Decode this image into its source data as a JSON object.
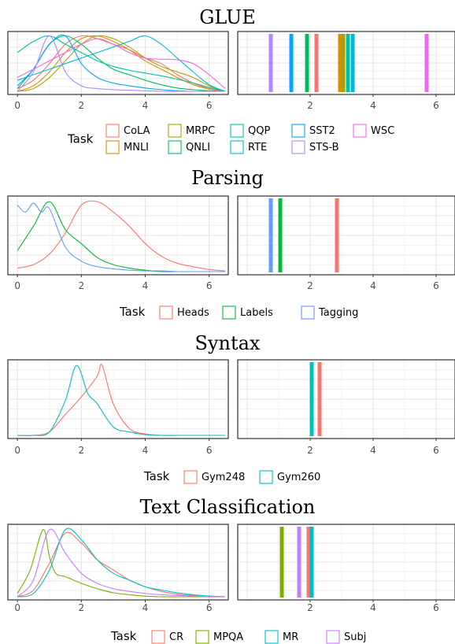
{
  "chart_data": [
    {
      "type": "density",
      "title": "GLUE",
      "xlim": [
        -0.3,
        6.6
      ],
      "xticks": [
        0,
        2,
        4,
        6
      ],
      "ylim": [
        0,
        1.08
      ],
      "grid": true,
      "legend": {
        "title": "Task",
        "position": "bottom",
        "columns": 5
      },
      "series": [
        {
          "name": "CoLA",
          "color": "#F8766D",
          "mean": 2.2,
          "x": [
            0,
            0.5,
            1,
            1.5,
            2,
            2.5,
            3,
            3.5,
            4,
            4.5,
            5,
            5.5,
            6,
            6.5
          ],
          "y": [
            0.05,
            0.2,
            0.5,
            0.85,
            1.0,
            0.95,
            0.85,
            0.75,
            0.6,
            0.5,
            0.3,
            0.15,
            0.05,
            0.0
          ]
        },
        {
          "name": "MNLI",
          "color": "#DB8E00",
          "mean": 2.95,
          "x": [
            0,
            0.5,
            1,
            1.5,
            2,
            2.5,
            3,
            3.5,
            4,
            4.5,
            5,
            5.5,
            6,
            6.5
          ],
          "y": [
            0.0,
            0.1,
            0.35,
            0.7,
            0.95,
            1.0,
            0.9,
            0.75,
            0.55,
            0.4,
            0.25,
            0.12,
            0.04,
            0.0
          ]
        },
        {
          "name": "MRPC",
          "color": "#AEA200",
          "mean": 3.05,
          "x": [
            0,
            0.5,
            1,
            1.5,
            2,
            2.5,
            3,
            3.5,
            4,
            4.5,
            5,
            5.5,
            6,
            6.5
          ],
          "y": [
            0.0,
            0.05,
            0.25,
            0.55,
            0.85,
            1.0,
            0.95,
            0.8,
            0.6,
            0.45,
            0.35,
            0.25,
            0.1,
            0.0
          ]
        },
        {
          "name": "QNLI",
          "color": "#00BD5C",
          "mean": 1.9,
          "x": [
            0,
            0.5,
            1,
            1.5,
            2,
            2.5,
            3,
            3.5,
            4,
            4.5,
            5,
            5.5,
            6,
            6.5
          ],
          "y": [
            0.05,
            0.4,
            0.85,
            1.0,
            0.85,
            0.6,
            0.4,
            0.3,
            0.2,
            0.12,
            0.06,
            0.03,
            0.01,
            0.0
          ]
        },
        {
          "name": "QQP",
          "color": "#00C1A7",
          "mean": 3.2,
          "x": [
            0,
            0.5,
            1,
            1.5,
            2,
            2.5,
            3,
            3.5,
            4,
            4.5,
            5,
            5.5,
            6,
            6.5
          ],
          "y": [
            0.7,
            0.9,
            1.0,
            0.85,
            0.7,
            0.55,
            0.45,
            0.38,
            0.33,
            0.28,
            0.22,
            0.15,
            0.07,
            0.0
          ]
        },
        {
          "name": "RTE",
          "color": "#00BADE",
          "mean": 3.35,
          "x": [
            0,
            0.5,
            1,
            1.5,
            2,
            2.5,
            3,
            3.5,
            4,
            4.5,
            5,
            5.5,
            6,
            6.5
          ],
          "y": [
            0.2,
            0.3,
            0.4,
            0.5,
            0.6,
            0.7,
            0.8,
            0.9,
            1.0,
            0.85,
            0.6,
            0.35,
            0.12,
            0.0
          ]
        },
        {
          "name": "SST2",
          "color": "#00A6FF",
          "mean": 1.4,
          "x": [
            0,
            0.5,
            1,
            1.5,
            2,
            2.5,
            3,
            3.5,
            4,
            4.5,
            5,
            5.5,
            6,
            6.5
          ],
          "y": [
            0.1,
            0.4,
            0.85,
            1.0,
            0.5,
            0.25,
            0.15,
            0.1,
            0.06,
            0.03,
            0.01,
            0.0,
            0.0,
            0.0
          ]
        },
        {
          "name": "STS-B",
          "color": "#B385FF",
          "mean": 0.75,
          "x": [
            0,
            0.5,
            1,
            1.5,
            2,
            2.5,
            3,
            3.5,
            4,
            4.5,
            5,
            5.5,
            6,
            6.5
          ],
          "y": [
            0.0,
            0.35,
            1.0,
            0.35,
            0.1,
            0.05,
            0.03,
            0.02,
            0.01,
            0.0,
            0.0,
            0.0,
            0.0,
            0.0
          ]
        },
        {
          "name": "WSC",
          "color": "#EF67EB",
          "mean": 5.7,
          "x": [
            0,
            0.5,
            1,
            1.5,
            2,
            2.5,
            3,
            3.5,
            4,
            4.5,
            5,
            5.5,
            6,
            6.5
          ],
          "y": [
            0.25,
            0.4,
            0.55,
            0.7,
            0.85,
            0.95,
            0.85,
            0.7,
            0.6,
            0.58,
            0.57,
            0.5,
            0.3,
            0.05
          ]
        }
      ]
    },
    {
      "type": "density",
      "title": "Parsing",
      "xlim": [
        -0.3,
        6.6
      ],
      "xticks": [
        0,
        2,
        4,
        6
      ],
      "ylim": [
        0,
        1.08
      ],
      "grid": true,
      "legend": {
        "title": "Task",
        "position": "bottom",
        "columns": 3
      },
      "series": [
        {
          "name": "Heads",
          "color": "#F8766D",
          "mean": 2.85,
          "x": [
            0,
            0.5,
            1,
            1.5,
            2,
            2.5,
            3,
            3.5,
            4,
            4.5,
            5,
            5.5,
            6,
            6.5
          ],
          "y": [
            0.05,
            0.1,
            0.25,
            0.55,
            0.95,
            1.0,
            0.85,
            0.65,
            0.4,
            0.22,
            0.12,
            0.07,
            0.03,
            0.01
          ]
        },
        {
          "name": "Labels",
          "color": "#00BA38",
          "mean": 1.05,
          "x": [
            0,
            0.5,
            1,
            1.5,
            2,
            2.5,
            3,
            3.5,
            4,
            4.5,
            5,
            5.5,
            6,
            6.5
          ],
          "y": [
            0.3,
            0.65,
            1.0,
            0.6,
            0.4,
            0.2,
            0.1,
            0.05,
            0.02,
            0.0,
            0.0,
            0.0,
            0.0,
            0.0
          ]
        },
        {
          "name": "Tagging",
          "color": "#619CFF",
          "mean": 0.75,
          "x": [
            0,
            0.25,
            0.5,
            0.75,
            1,
            1.5,
            2,
            2.5,
            3,
            3.5,
            4,
            4.5,
            5,
            5.5,
            6,
            6.5
          ],
          "y": [
            0.95,
            0.85,
            0.98,
            0.85,
            0.9,
            0.35,
            0.15,
            0.07,
            0.04,
            0.02,
            0.01,
            0.01,
            0.0,
            0.0,
            0.0,
            0.0
          ]
        }
      ]
    },
    {
      "type": "density",
      "title": "Syntax",
      "xlim": [
        -0.3,
        6.6
      ],
      "xticks": [
        0,
        2,
        4,
        6
      ],
      "ylim": [
        0,
        1.08
      ],
      "grid": true,
      "legend": {
        "title": "Task",
        "position": "bottom",
        "columns": 2
      },
      "series": [
        {
          "name": "Gym248",
          "color": "#F8766D",
          "mean": 2.3,
          "x": [
            0,
            0.5,
            1,
            1.5,
            2,
            2.5,
            2.65,
            3,
            3.5,
            4,
            4.5,
            5,
            5.5,
            6,
            6.5
          ],
          "y": [
            0,
            0,
            0.05,
            0.3,
            0.55,
            0.85,
            1.0,
            0.45,
            0.1,
            0.02,
            0,
            0,
            0,
            0,
            0
          ]
        },
        {
          "name": "Gym260",
          "color": "#00BFC4",
          "mean": 2.05,
          "x": [
            0,
            0.5,
            1,
            1.5,
            1.85,
            2.2,
            2.5,
            3,
            3.5,
            4,
            4.5,
            5,
            5.5,
            6,
            6.5
          ],
          "y": [
            0,
            0,
            0.05,
            0.5,
            1.0,
            0.6,
            0.45,
            0.12,
            0.05,
            0.01,
            0,
            0,
            0,
            0,
            0
          ]
        }
      ]
    },
    {
      "type": "density",
      "title": "Text Classification",
      "xlim": [
        -0.3,
        6.6
      ],
      "xticks": [
        0,
        2,
        4,
        6
      ],
      "ylim": [
        0,
        1.08
      ],
      "grid": true,
      "legend": {
        "title": "Task",
        "position": "bottom",
        "columns": 4
      },
      "series": [
        {
          "name": "CR",
          "color": "#F8766D",
          "mean": 1.95,
          "x": [
            0,
            0.5,
            1,
            1.5,
            2,
            2.5,
            3,
            3.5,
            4,
            4.5,
            5,
            5.5,
            6,
            6.5
          ],
          "y": [
            0,
            0.1,
            0.5,
            0.95,
            0.8,
            0.55,
            0.4,
            0.25,
            0.15,
            0.08,
            0.04,
            0.02,
            0.01,
            0
          ]
        },
        {
          "name": "MPQA",
          "color": "#7CAE00",
          "mean": 1.1,
          "x": [
            0,
            0.4,
            0.8,
            1,
            1.2,
            1.5,
            2,
            2.5,
            3,
            3.5,
            4,
            4.5,
            5,
            5.5,
            6,
            6.5
          ],
          "y": [
            0.05,
            0.4,
            1.0,
            0.6,
            0.35,
            0.3,
            0.2,
            0.12,
            0.06,
            0.03,
            0.01,
            0,
            0,
            0,
            0,
            0
          ]
        },
        {
          "name": "MR",
          "color": "#00BFC4",
          "mean": 2.05,
          "x": [
            0,
            0.5,
            1,
            1.5,
            2,
            2.5,
            3,
            3.5,
            4,
            4.5,
            5,
            5.5,
            6,
            6.5
          ],
          "y": [
            0,
            0.05,
            0.4,
            1.0,
            0.85,
            0.55,
            0.35,
            0.25,
            0.15,
            0.1,
            0.06,
            0.03,
            0.01,
            0
          ]
        },
        {
          "name": "Subj",
          "color": "#C77CFF",
          "mean": 1.65,
          "x": [
            0,
            0.5,
            1,
            1.5,
            2,
            2.5,
            3,
            3.5,
            4,
            4.5,
            5,
            5.5,
            6,
            6.5
          ],
          "y": [
            0,
            0.25,
            1.0,
            0.65,
            0.35,
            0.2,
            0.12,
            0.08,
            0.05,
            0.03,
            0.02,
            0.01,
            0,
            0
          ]
        }
      ]
    }
  ]
}
